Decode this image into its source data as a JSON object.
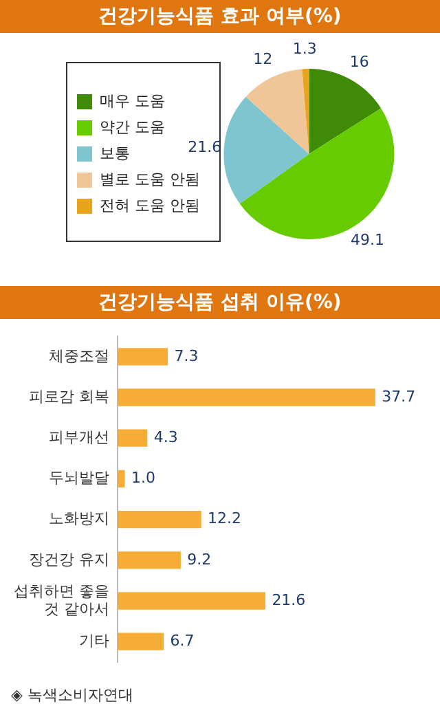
{
  "chart_data": [
    {
      "type": "pie",
      "title": "건강기능식품 효과 여부(%)",
      "categories": [
        "매우 도움",
        "약간 도움",
        "보통",
        "별로 도움 안됨",
        "전혀 도움 안됨"
      ],
      "values": [
        16,
        49.1,
        21.6,
        12,
        1.3
      ],
      "colors": [
        "#3f8a06",
        "#66cc00",
        "#7ec5cf",
        "#f0c597",
        "#e8a41c"
      ],
      "data_labels": true,
      "legend": "left"
    },
    {
      "type": "bar",
      "title": "건강기능식품 섭취 이유(%)",
      "orientation": "horizontal",
      "categories": [
        "체중조절",
        "피로감 회복",
        "피부개선",
        "두뇌발달",
        "노화방지",
        "장건강 유지",
        "섭취하면 좋을 것 같아서",
        "기타"
      ],
      "values": [
        7.3,
        37.7,
        4.3,
        1.0,
        12.2,
        9.2,
        21.6,
        6.7
      ],
      "value_labels": [
        "7.3",
        "37.7",
        "4.3",
        "1.0",
        "12.2",
        "9.2",
        "21.6",
        "6.7"
      ],
      "color": "#f7ac35",
      "tick_labels": "y",
      "grid": false,
      "annotations": [
        "◈ 녹색소비자연대"
      ]
    }
  ]
}
